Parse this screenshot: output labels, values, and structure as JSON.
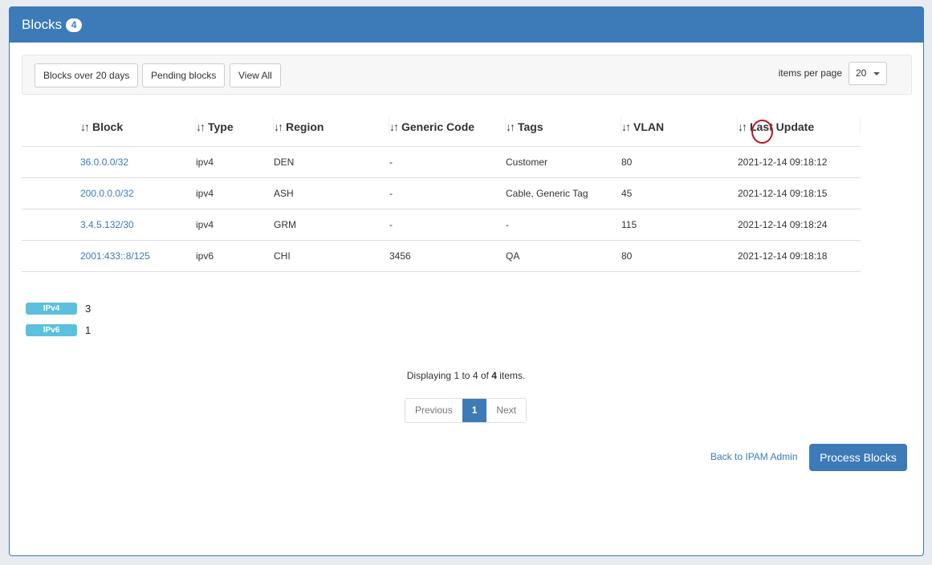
{
  "header": {
    "title": "Blocks",
    "count": "4"
  },
  "toolbar": {
    "filters": [
      "Blocks over 20 days",
      "Pending blocks",
      "View All"
    ],
    "items_per_page_label": "items per page",
    "items_per_page": "20"
  },
  "table": {
    "sort_icon": "sort-arrows-icon",
    "columns": [
      "Block",
      "Type",
      "Region",
      "Generic Code",
      "Tags",
      "VLAN",
      "Last Update"
    ],
    "rows": [
      [
        "36.0.0.0/32",
        "ipv4",
        "DEN",
        "-",
        "Customer",
        "80",
        "2021-12-14 09:18:12"
      ],
      [
        "200.0.0.0/32",
        "ipv4",
        "ASH",
        "-",
        "Cable, Generic Tag",
        "45",
        "2021-12-14 09:18:15"
      ],
      [
        "3.4.5.132/30",
        "ipv4",
        "GRM",
        "-",
        "-",
        "115",
        "2021-12-14 09:18:24"
      ],
      [
        "2001:433::8/125",
        "ipv6",
        "CHI",
        "3456",
        "QA",
        "80",
        "2021-12-14 09:18:18"
      ]
    ]
  },
  "summary": [
    {
      "label": "IPv4",
      "count": "3"
    },
    {
      "label": "IPv6",
      "count": "1"
    }
  ],
  "display": {
    "prefix": "Displaying",
    "from": "1",
    "to_word": "to",
    "to": "4",
    "of_word": "of",
    "total": "4",
    "suffix": "items."
  },
  "pagination": {
    "previous": "Previous",
    "current": "1",
    "next": "Next"
  },
  "actions": {
    "back": "Back to IPAM Admin",
    "process": "Process Blocks"
  },
  "colors": {
    "primary": "#3d7ab8",
    "label": "#5bc0de",
    "annotation": "#b11a24"
  }
}
